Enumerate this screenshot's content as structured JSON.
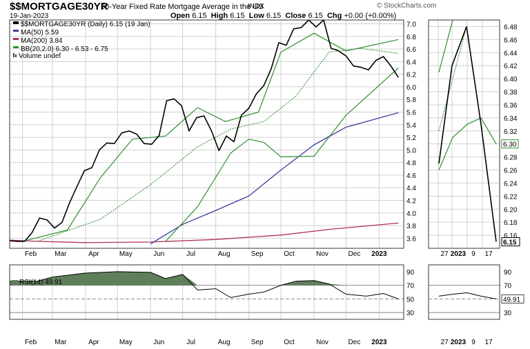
{
  "header": {
    "symbol": "$$MORTGAGE30YR",
    "description": "30-Year Fixed Rate Mortgage Average in the US",
    "exchange": "INDX",
    "date": "19-Jan-2023",
    "brand": "© StockCharts.com",
    "ohlc": {
      "open_label": "Open",
      "open": "6.15",
      "high_label": "High",
      "high": "6.15",
      "low_label": "Low",
      "low": "6.15",
      "close_label": "Close",
      "close": "6.15",
      "chg_label": "Chg",
      "chg": "+0.00 (+0.00%)"
    }
  },
  "legend": {
    "price": "$$MORTGAGE30YR (Daily) 6.15 (19 Jan)",
    "ma50": "MA(50) 5.59",
    "ma200": "MA(200) 3.84",
    "bb": "BB(20,2.0) 6.30 - 6.53 - 6.75",
    "volume": "Volume undef",
    "rsi": "RSI(14) 49.91"
  },
  "colors": {
    "price": "#000000",
    "ma50": "#3b3b9a",
    "ma200": "#b03050",
    "bb": "#2f8f2f",
    "rsi_fill": "#5f7f5a",
    "grid": "#d0d0d0"
  },
  "chart_data": [
    {
      "type": "line",
      "title": "$$MORTGAGE30YR (Daily) 6.15 (19 Jan)",
      "y_ticks": [
        3.6,
        3.8,
        4.0,
        4.2,
        4.4,
        4.6,
        4.8,
        5.0,
        5.2,
        5.4,
        5.6,
        5.8,
        6.0,
        6.2,
        6.4,
        6.6,
        6.8,
        7.0
      ],
      "ylim": [
        3.44,
        7.06
      ],
      "x_tick_labels": [
        "Feb",
        "Mar",
        "Apr",
        "May",
        "Jun",
        "Jul",
        "Aug",
        "Sep",
        "Oct",
        "Nov",
        "Dec",
        "2023"
      ],
      "series": [
        {
          "name": "$$MORTGAGE30YR",
          "x": [
            "2022-01-20",
            "2022-01-27",
            "2022-02-03",
            "2022-02-10",
            "2022-02-17",
            "2022-02-24",
            "2022-03-03",
            "2022-03-10",
            "2022-03-17",
            "2022-03-24",
            "2022-03-31",
            "2022-04-07",
            "2022-04-14",
            "2022-04-21",
            "2022-04-28",
            "2022-05-05",
            "2022-05-12",
            "2022-05-19",
            "2022-05-26",
            "2022-06-02",
            "2022-06-09",
            "2022-06-16",
            "2022-06-23",
            "2022-06-30",
            "2022-07-07",
            "2022-07-14",
            "2022-07-21",
            "2022-07-28",
            "2022-08-04",
            "2022-08-11",
            "2022-08-18",
            "2022-08-25",
            "2022-09-01",
            "2022-09-08",
            "2022-09-15",
            "2022-09-22",
            "2022-09-29",
            "2022-10-06",
            "2022-10-13",
            "2022-10-20",
            "2022-10-27",
            "2022-11-03",
            "2022-11-10",
            "2022-11-17",
            "2022-11-23",
            "2022-12-01",
            "2022-12-08",
            "2022-12-15",
            "2022-12-22",
            "2022-12-29",
            "2023-01-05",
            "2023-01-12",
            "2023-01-19"
          ],
          "values": [
            3.56,
            3.55,
            3.55,
            3.69,
            3.92,
            3.89,
            3.76,
            3.85,
            4.16,
            4.42,
            4.67,
            4.72,
            5.0,
            5.11,
            5.1,
            5.27,
            5.3,
            5.25,
            5.1,
            5.09,
            5.23,
            5.78,
            5.81,
            5.7,
            5.3,
            5.51,
            5.54,
            5.3,
            4.99,
            5.22,
            5.13,
            5.55,
            5.66,
            5.89,
            6.02,
            6.29,
            6.7,
            6.66,
            6.92,
            6.94,
            7.08,
            6.95,
            7.08,
            6.61,
            6.58,
            6.49,
            6.33,
            6.31,
            6.27,
            6.42,
            6.48,
            6.33,
            6.15
          ]
        },
        {
          "name": "MA(50)",
          "x": [
            "2022-06-01",
            "2022-07-01",
            "2022-08-01",
            "2022-09-01",
            "2022-10-01",
            "2022-11-01",
            "2022-12-01",
            "2023-01-19"
          ],
          "values": [
            3.51,
            3.82,
            4.04,
            4.27,
            4.68,
            5.08,
            5.36,
            5.59
          ]
        },
        {
          "name": "MA(200)",
          "x": [
            "2022-01-20",
            "2022-02-15",
            "2022-04-01",
            "2022-06-01",
            "2022-08-01",
            "2022-10-01",
            "2022-11-15",
            "2023-01-19"
          ],
          "values": [
            3.57,
            3.55,
            3.53,
            3.54,
            3.58,
            3.65,
            3.74,
            3.84
          ]
        },
        {
          "name": "BB upper",
          "x": [
            "2022-02-01",
            "2022-03-15",
            "2022-04-15",
            "2022-05-15",
            "2022-06-15",
            "2022-07-15",
            "2022-08-10",
            "2022-09-10",
            "2022-10-01",
            "2022-11-01",
            "2022-12-01",
            "2023-01-19"
          ],
          "values": [
            3.55,
            3.73,
            4.56,
            5.17,
            5.22,
            5.67,
            5.45,
            5.6,
            6.55,
            6.85,
            6.57,
            6.75
          ]
        },
        {
          "name": "BB middle",
          "x": [
            "2022-02-15",
            "2022-04-15",
            "2022-06-01",
            "2022-07-15",
            "2022-08-15",
            "2022-09-15",
            "2022-10-15",
            "2022-11-15",
            "2022-12-15",
            "2023-01-19"
          ],
          "values": [
            3.55,
            3.9,
            4.45,
            5.05,
            5.33,
            5.45,
            5.85,
            6.55,
            6.61,
            6.53
          ]
        },
        {
          "name": "BB lower",
          "x": [
            "2022-06-15",
            "2022-07-15",
            "2022-08-15",
            "2022-09-01",
            "2022-09-15",
            "2022-10-01",
            "2022-11-01",
            "2022-12-01",
            "2023-01-19"
          ],
          "values": [
            3.55,
            4.1,
            4.95,
            5.17,
            5.12,
            4.89,
            4.9,
            5.55,
            6.3
          ]
        }
      ]
    },
    {
      "type": "line",
      "title": "RSI(14) 49.91",
      "y_ticks": [
        30,
        50,
        70,
        90
      ],
      "ylim": [
        20,
        100
      ],
      "reference_lines": [
        70,
        50,
        30
      ],
      "x_tick_labels": [
        "Feb",
        "Mar",
        "Apr",
        "May",
        "Jun",
        "Jul",
        "Aug",
        "Sep",
        "Oct",
        "Nov",
        "Dec",
        "2023"
      ],
      "series": [
        {
          "name": "RSI(14)",
          "x": [
            "2022-01-20",
            "2022-02-15",
            "2022-03-01",
            "2022-04-01",
            "2022-05-01",
            "2022-06-01",
            "2022-06-15",
            "2022-07-01",
            "2022-07-15",
            "2022-08-01",
            "2022-08-15",
            "2022-09-01",
            "2022-09-15",
            "2022-10-01",
            "2022-10-15",
            "2022-11-01",
            "2022-11-15",
            "2022-12-01",
            "2022-12-20",
            "2023-01-05",
            "2023-01-19"
          ],
          "values": [
            76,
            76,
            82,
            88,
            90,
            89,
            80,
            86,
            63,
            65,
            52,
            57,
            60,
            70,
            76,
            77,
            72,
            57,
            54,
            58,
            50
          ]
        }
      ]
    }
  ],
  "zoom_panel": {
    "y_ticks": [
      6.16,
      6.18,
      6.2,
      6.22,
      6.24,
      6.26,
      6.28,
      6.3,
      6.32,
      6.34,
      6.36,
      6.38,
      6.4,
      6.42,
      6.44,
      6.46,
      6.48
    ],
    "ylim": [
      6.14,
      6.49
    ],
    "x_labels": [
      "27",
      "2023",
      "9",
      "17"
    ],
    "price_tag": "6.15",
    "bb_tag": "6.30",
    "rsi_tag": "49.91",
    "rsi_ticks": [
      30,
      50,
      70,
      90
    ]
  }
}
